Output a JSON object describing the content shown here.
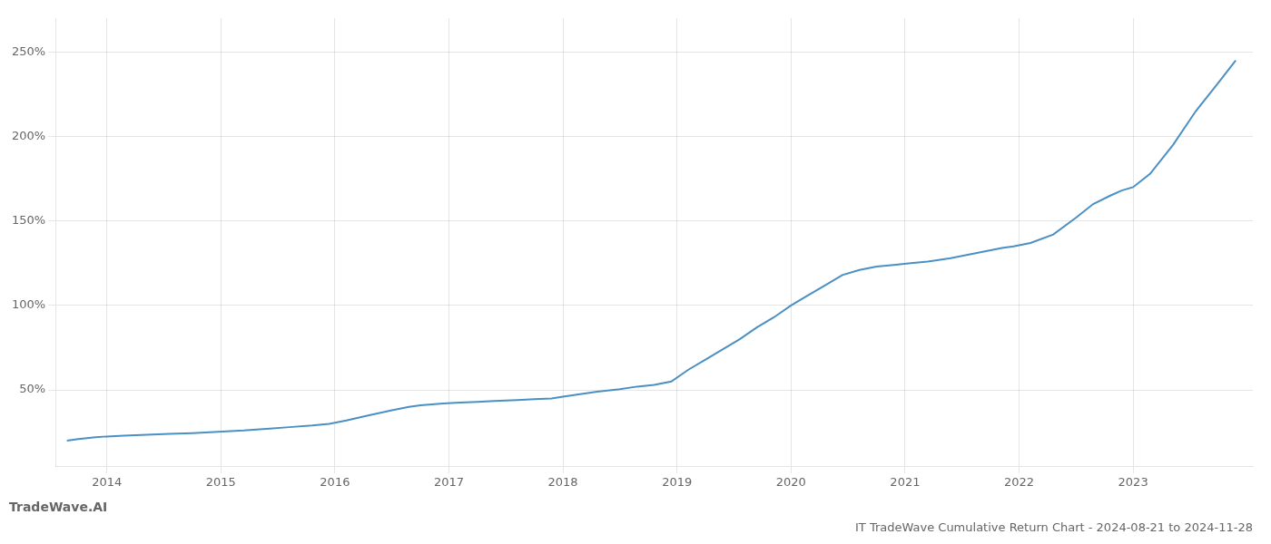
{
  "chart_data": {
    "type": "line",
    "title": "IT TradeWave Cumulative Return Chart - 2024-08-21 to 2024-11-28",
    "annotations": [
      "TradeWave.AI"
    ],
    "color": "#4a90c4",
    "x": [
      2013.65,
      2013.75,
      2013.9,
      2014.0,
      2014.15,
      2014.35,
      2014.55,
      2014.75,
      2014.9,
      2015.05,
      2015.2,
      2015.4,
      2015.6,
      2015.8,
      2015.95,
      2016.1,
      2016.3,
      2016.5,
      2016.65,
      2016.75,
      2016.85,
      2016.95,
      2017.1,
      2017.25,
      2017.4,
      2017.6,
      2017.75,
      2017.9,
      2018.0,
      2018.15,
      2018.3,
      2018.5,
      2018.65,
      2018.8,
      2018.95,
      2019.1,
      2019.25,
      2019.4,
      2019.55,
      2019.7,
      2019.85,
      2020.0,
      2020.15,
      2020.3,
      2020.45,
      2020.6,
      2020.75,
      2020.9,
      2021.05,
      2021.2,
      2021.4,
      2021.55,
      2021.7,
      2021.85,
      2021.95,
      2022.1,
      2022.3,
      2022.5,
      2022.65,
      2022.8,
      2022.9,
      2023.0,
      2023.15,
      2023.35,
      2023.55,
      2023.75,
      2023.9
    ],
    "values": [
      20,
      21,
      22,
      22.5,
      23,
      23.5,
      24,
      24.5,
      25,
      25.5,
      26,
      27,
      28,
      29,
      30,
      32,
      35,
      38,
      40,
      41,
      41.5,
      42,
      42.5,
      43,
      43.5,
      44,
      44.5,
      45,
      46,
      47.5,
      49,
      50.5,
      52,
      53,
      55,
      62,
      68,
      74,
      80,
      87,
      93,
      100,
      106,
      112,
      118,
      121,
      123,
      124,
      125,
      126,
      128,
      130,
      132,
      134,
      135,
      137,
      142,
      152,
      160,
      165,
      168,
      170,
      178,
      195,
      215,
      232,
      245
    ],
    "xlim": [
      2013.55,
      2024.05
    ],
    "xticks": [
      2014,
      2015,
      2016,
      2017,
      2018,
      2019,
      2020,
      2021,
      2022,
      2023
    ],
    "ylim": [
      5,
      270
    ],
    "yticks": [
      {
        "value": 50,
        "label": "50%"
      },
      {
        "value": 100,
        "label": "100%"
      },
      {
        "value": 150,
        "label": "150%"
      },
      {
        "value": 200,
        "label": "200%"
      },
      {
        "value": 250,
        "label": "250%"
      }
    ],
    "grid": true
  }
}
